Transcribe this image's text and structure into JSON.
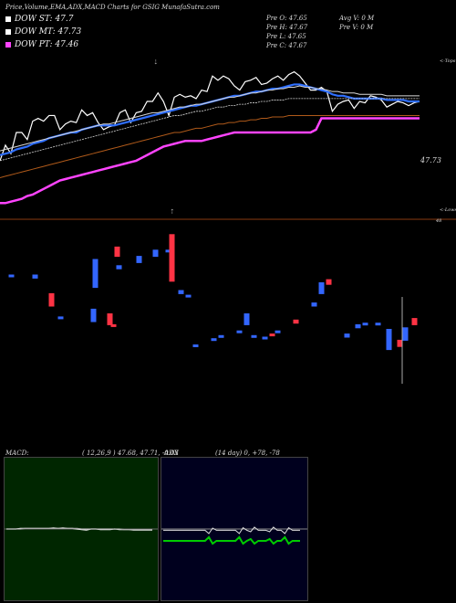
{
  "header": {
    "title": "Price,Volume,EMA,ADX,MACD Charts for GSIG MunafaSutra.com"
  },
  "legend": [
    {
      "label": "DOW ST: 47.7",
      "color": "#ffffff"
    },
    {
      "label": "DOW MT: 47.73",
      "color": "#ffffff"
    },
    {
      "label": "DOW PT: 47.46",
      "color": "#ff44ff"
    }
  ],
  "quote": {
    "open": "Pre  O: 47.65",
    "high": "Pre  H: 47.67",
    "low": "Pre  L: 47.65",
    "close": "Pre  C: 47.67",
    "avg_volume": "Avg V: 0   M",
    "pre_volume": "Pre   V: 0   M"
  },
  "annotations": {
    "last_price": "47.73",
    "tops": "<-Tops",
    "lows": "<-Lows",
    "level": "48"
  },
  "macd": {
    "label": "MACD:",
    "values": "( 12,26,9 ) 47.68,  47.71,  -0.03"
  },
  "adx": {
    "label": "ADX",
    "values": "(14  day) 0,  +78,  -78"
  },
  "colors": {
    "price_line": "#ffffff",
    "ema_short": "#2f6fff",
    "ema_mid": "#d8d8d8",
    "ema_long": "#b05a1a",
    "support": "#ff44ff",
    "up_candle": "#3366ff",
    "down_candle": "#ff3344",
    "macd_bg": "#002600",
    "adx_bg": "#00001e",
    "adx_line": "#00cc00"
  },
  "chart_data": [
    {
      "type": "line",
      "title": "Price,Volume,EMA,ADX,MACD Charts for GSIG MunafaSutra.com",
      "series": [
        {
          "values": [
            47.3,
            47.41,
            47.35,
            47.5,
            47.5,
            47.45,
            47.58,
            47.6,
            47.58,
            47.62,
            47.62,
            47.52,
            47.56,
            47.58,
            47.57,
            47.66,
            47.62,
            47.64,
            47.57,
            47.52,
            47.54,
            47.55,
            47.64,
            47.66,
            47.57,
            47.64,
            47.65,
            47.72,
            47.72,
            47.78,
            47.72,
            47.62,
            47.75,
            47.77,
            47.75,
            47.76,
            47.74,
            47.8,
            47.79,
            47.9,
            47.87,
            47.9,
            47.88,
            47.83,
            47.8,
            47.86,
            47.87,
            47.89,
            47.84,
            47.85,
            47.88,
            47.9,
            47.87,
            47.91,
            47.93,
            47.9,
            47.85,
            47.8,
            47.8,
            47.82,
            47.79,
            47.65,
            47.7,
            47.72,
            47.73,
            47.67,
            47.72,
            47.71,
            47.76,
            47.75,
            47.73,
            47.68,
            47.7,
            47.72,
            47.71,
            47.69,
            47.71,
            47.72
          ]
        },
        {
          "values": [
            47.34,
            47.35,
            47.36,
            47.38,
            47.39,
            47.4,
            47.42,
            47.43,
            47.44,
            47.46,
            47.47,
            47.48,
            47.49,
            47.5,
            47.5,
            47.52,
            47.53,
            47.54,
            47.55,
            47.55,
            47.55,
            47.55,
            47.56,
            47.57,
            47.58,
            47.59,
            47.6,
            47.61,
            47.62,
            47.63,
            47.64,
            47.65,
            47.66,
            47.67,
            47.68,
            47.69,
            47.69,
            47.7,
            47.71,
            47.72,
            47.73,
            47.74,
            47.75,
            47.76,
            47.76,
            47.77,
            47.78,
            47.79,
            47.79,
            47.8,
            47.81,
            47.81,
            47.82,
            47.83,
            47.84,
            47.84,
            47.83,
            47.82,
            47.81,
            47.8,
            47.79,
            47.77,
            47.76,
            47.76,
            47.75,
            47.74,
            47.74,
            47.74,
            47.74,
            47.74,
            47.74,
            47.73,
            47.73,
            47.73,
            47.73,
            47.72,
            47.72,
            47.72
          ]
        },
        {
          "values": [
            47.37,
            47.38,
            47.39,
            47.4,
            47.41,
            47.42,
            47.43,
            47.44,
            47.45,
            47.46,
            47.47,
            47.48,
            47.49,
            47.5,
            47.51,
            47.52,
            47.53,
            47.54,
            47.55,
            47.56,
            47.56,
            47.57,
            47.58,
            47.59,
            47.6,
            47.61,
            47.62,
            47.63,
            47.64,
            47.64,
            47.65,
            47.66,
            47.67,
            47.68,
            47.68,
            47.69,
            47.7,
            47.7,
            47.71,
            47.72,
            47.73,
            47.74,
            47.75,
            47.75,
            47.76,
            47.77,
            47.78,
            47.78,
            47.79,
            47.8,
            47.8,
            47.81,
            47.81,
            47.82,
            47.82,
            47.83,
            47.82,
            47.82,
            47.81,
            47.81,
            47.8,
            47.79,
            47.79,
            47.78,
            47.78,
            47.78,
            47.77,
            47.77,
            47.77,
            47.77,
            47.77,
            47.76,
            47.76,
            47.76,
            47.76,
            47.76,
            47.76,
            47.76
          ]
        },
        {
          "values": [
            47.3,
            47.31,
            47.32,
            47.33,
            47.34,
            47.35,
            47.36,
            47.37,
            47.38,
            47.39,
            47.4,
            47.41,
            47.42,
            47.43,
            47.44,
            47.45,
            47.46,
            47.47,
            47.48,
            47.49,
            47.5,
            47.51,
            47.52,
            47.53,
            47.54,
            47.55,
            47.56,
            47.57,
            47.58,
            47.59,
            47.6,
            47.61,
            47.62,
            47.62,
            47.63,
            47.64,
            47.65,
            47.65,
            47.66,
            47.67,
            47.68,
            47.68,
            47.69,
            47.69,
            47.7,
            47.7,
            47.71,
            47.71,
            47.72,
            47.72,
            47.73,
            47.73,
            47.73,
            47.74,
            47.74,
            47.74,
            47.74,
            47.74,
            47.74,
            47.74,
            47.74,
            47.74,
            47.74,
            47.74,
            47.74,
            47.74,
            47.74,
            47.74,
            47.74,
            47.74,
            47.74,
            47.74,
            47.74,
            47.74,
            47.74,
            47.74,
            47.74,
            47.74
          ]
        },
        {
          "values": [
            47.0,
            47.0,
            47.01,
            47.02,
            47.03,
            47.05,
            47.06,
            47.08,
            47.1,
            47.12,
            47.14,
            47.16,
            47.17,
            47.18,
            47.19,
            47.2,
            47.21,
            47.22,
            47.23,
            47.24,
            47.25,
            47.26,
            47.27,
            47.28,
            47.29,
            47.3,
            47.32,
            47.34,
            47.36,
            47.38,
            47.4,
            47.41,
            47.42,
            47.43,
            47.44,
            47.44,
            47.44,
            47.44,
            47.45,
            47.46,
            47.47,
            47.48,
            47.49,
            47.5,
            47.5,
            47.5,
            47.5,
            47.5,
            47.5,
            47.5,
            47.5,
            47.5,
            47.5,
            47.5,
            47.5,
            47.5,
            47.5,
            47.5,
            47.52,
            47.6,
            47.6,
            47.6,
            47.6,
            47.6,
            47.6,
            47.6,
            47.6,
            47.6,
            47.6,
            47.6,
            47.6,
            47.6,
            47.6,
            47.6,
            47.6,
            47.6,
            47.6,
            47.6
          ]
        }
      ]
    },
    {
      "type": "bar",
      "title": "Volume candles",
      "candles": [
        [
          0,
          47.7,
          47.7,
          "up"
        ],
        [
          1,
          47.68,
          47.7,
          "up"
        ],
        [
          2,
          47.5,
          47.58,
          "down"
        ],
        [
          3,
          47.42,
          47.43,
          "up"
        ],
        [
          4,
          47.4,
          47.48,
          "up"
        ],
        [
          5,
          47.38,
          47.45,
          "down"
        ],
        [
          6,
          47.37,
          47.38,
          "down"
        ],
        [
          7,
          47.82,
          47.88,
          "down"
        ],
        [
          8,
          47.62,
          47.8,
          "up"
        ],
        [
          9,
          47.74,
          47.76,
          "up"
        ],
        [
          10,
          47.78,
          47.82,
          "up"
        ],
        [
          11,
          47.82,
          47.86,
          "up"
        ],
        [
          12,
          47.85,
          47.86,
          "up"
        ],
        [
          13,
          47.66,
          47.96,
          "down"
        ],
        [
          14,
          47.58,
          47.6,
          "up"
        ],
        [
          15,
          47.56,
          47.57,
          "up"
        ],
        [
          16,
          47.24,
          47.25,
          "up"
        ],
        [
          17,
          47.28,
          47.29,
          "up"
        ],
        [
          18,
          47.3,
          47.31,
          "up"
        ],
        [
          19,
          47.33,
          47.34,
          "up"
        ],
        [
          20,
          47.38,
          47.45,
          "up"
        ],
        [
          21,
          47.3,
          47.31,
          "up"
        ],
        [
          22,
          47.29,
          47.3,
          "up"
        ],
        [
          23,
          47.31,
          47.32,
          "down"
        ],
        [
          24,
          47.33,
          47.34,
          "up"
        ],
        [
          25,
          47.39,
          47.41,
          "down"
        ],
        [
          26,
          47.5,
          47.52,
          "up"
        ],
        [
          27,
          47.58,
          47.65,
          "up"
        ],
        [
          28,
          47.64,
          47.67,
          "down"
        ],
        [
          29,
          47.3,
          47.32,
          "up"
        ],
        [
          30,
          47.36,
          47.38,
          "up"
        ],
        [
          31,
          47.38,
          47.39,
          "up"
        ],
        [
          32,
          47.38,
          47.39,
          "up"
        ],
        [
          33,
          47.22,
          47.35,
          "up"
        ],
        [
          34,
          47.24,
          47.28,
          "down"
        ],
        [
          35,
          47.28,
          47.36,
          "up"
        ],
        [
          36,
          47.38,
          47.42,
          "down"
        ]
      ]
    },
    {
      "type": "line",
      "title": "MACD",
      "series": [
        {
          "values": [
            0,
            0,
            0,
            0.01,
            0.01,
            0.01,
            0.01,
            0.01,
            0.01,
            0.01,
            0.02,
            0.01,
            0.02,
            0.01,
            0.01,
            0,
            -0.01,
            -0.02,
            0,
            0,
            -0.01,
            -0.01,
            -0.01,
            0,
            -0.01,
            -0.01,
            -0.01,
            -0.02,
            -0.02,
            -0.02,
            -0.02,
            -0.02
          ]
        },
        {
          "values": [
            0,
            0,
            0,
            0,
            0.01,
            0.01,
            0.01,
            0.01,
            0.01,
            0.01,
            0.01,
            0.01,
            0.01,
            0.01,
            0.01,
            0.01,
            0,
            0,
            0,
            0,
            0,
            0,
            0,
            0,
            0,
            -0.01,
            -0.01,
            -0.01,
            -0.01,
            -0.01,
            -0.01,
            -0.01
          ]
        }
      ]
    },
    {
      "type": "line",
      "title": "ADX",
      "series": [
        {
          "values": [
            78,
            78,
            78,
            78,
            78,
            78,
            78,
            78,
            78,
            78,
            78,
            78,
            60,
            90,
            78,
            78,
            78,
            78,
            78,
            78,
            60,
            92,
            78,
            70,
            95,
            78,
            78,
            78,
            70,
            95,
            78,
            78,
            60,
            92,
            78,
            78,
            78
          ]
        },
        {
          "values": [
            20,
            20,
            20,
            20,
            20,
            20,
            20,
            20,
            20,
            20,
            20,
            20,
            40,
            5,
            20,
            20,
            20,
            20,
            20,
            20,
            40,
            5,
            20,
            30,
            5,
            20,
            20,
            20,
            30,
            5,
            20,
            20,
            40,
            5,
            20,
            20,
            20
          ]
        }
      ]
    }
  ]
}
